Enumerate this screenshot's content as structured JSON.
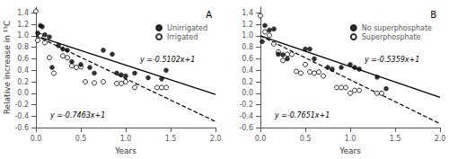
{
  "chart_data": [
    {
      "type": "scatter",
      "xlabel": "Years",
      "ylabel": "Relative increase in ¹³C",
      "annotations": [
        "A",
        "y =-0.5102x+1",
        "y =-0.7463x+1"
      ],
      "legend": "upper right",
      "grid": false,
      "xlim": [
        0.0,
        2.0
      ],
      "ylim": [
        -0.6,
        1.5
      ],
      "xticks": [
        {
          "value": 0,
          "label": "0.0"
        },
        0.5,
        {
          "value": 1,
          "label": "1.0"
        },
        1.5,
        {
          "value": 2,
          "label": "2.0"
        }
      ],
      "yticks": [
        -0.6,
        -0.4,
        -0.2,
        {
          "value": 0,
          "label": "0.0"
        },
        0.2,
        0.4,
        0.6,
        0.8,
        {
          "value": 1,
          "label": "1.0"
        },
        1.2,
        1.4
      ],
      "series": [
        {
          "type": "line",
          "color": "#000000",
          "line_style": "solid",
          "x": [
            0.0,
            2.0
          ],
          "values": [
            1,
            -0.0204
          ]
        },
        {
          "type": "line",
          "color": "#000000",
          "line_style": "dashed",
          "x": [
            0.0,
            2.0
          ],
          "values": [
            1,
            -0.4926
          ]
        },
        {
          "name": "Unirrigated",
          "type": "scatter",
          "color": "#000000",
          "marker": "circle",
          "x": [
            0.02,
            0.05,
            0.07,
            0.1,
            0.15,
            0.18,
            0.25,
            0.3,
            0.35,
            0.4,
            0.5,
            0.6,
            0.65,
            0.75,
            0.85,
            0.9,
            0.95,
            1.0,
            1.1,
            1.25,
            1.4,
            1.45
          ],
          "values": [
            1.05,
            1.18,
            1.16,
            1.02,
            0.98,
            0.45,
            0.83,
            0.77,
            0.75,
            0.55,
            0.5,
            0.45,
            0.35,
            0.75,
            0.68,
            0.35,
            0.32,
            0.3,
            0.35,
            0.27,
            0.25,
            0.4
          ]
        },
        {
          "name": "Irrigated",
          "type": "scatter",
          "color": "#000000",
          "marker": "hollow",
          "x": [
            0.0,
            0.02,
            0.05,
            0.1,
            0.15,
            0.2,
            0.3,
            0.35,
            0.4,
            0.45,
            0.5,
            0.55,
            0.65,
            0.75,
            0.9,
            0.95,
            1.0,
            1.1,
            1.35,
            1.4,
            1.45
          ],
          "values": [
            1.43,
            0.92,
            1.0,
            0.88,
            0.62,
            0.35,
            0.65,
            0.62,
            0.48,
            0.45,
            0.46,
            0.2,
            0.18,
            0.2,
            0.17,
            0.17,
            0.2,
            0.1,
            0.1,
            0.1,
            0.1
          ]
        }
      ]
    },
    {
      "type": "scatter",
      "xlabel": "Years",
      "annotations": [
        "B",
        "y =-0.5359x+1",
        "y =-0.7651x+1"
      ],
      "legend": "upper right",
      "grid": false,
      "xlim": [
        0.0,
        2.0
      ],
      "ylim": [
        -0.6,
        1.5
      ],
      "xticks": [
        {
          "value": 0,
          "label": "0.0"
        },
        0.5,
        {
          "value": 1,
          "label": "1.0"
        },
        1.5,
        {
          "value": 2,
          "label": "2.0"
        }
      ],
      "yticks": [
        -0.6,
        -0.4,
        -0.2,
        {
          "value": 0,
          "label": "0.0"
        },
        0.2,
        0.4,
        0.6,
        0.8,
        {
          "value": 1,
          "label": "1.0"
        },
        1.2,
        1.4
      ],
      "series": [
        {
          "type": "line",
          "color": "#000000",
          "line_style": "solid",
          "x": [
            0.0,
            2.0
          ],
          "values": [
            1,
            -0.0718
          ]
        },
        {
          "type": "line",
          "color": "#000000",
          "line_style": "dashed",
          "x": [
            0.0,
            2.0
          ],
          "values": [
            1,
            -0.5302
          ]
        },
        {
          "name": "No superphosphate",
          "type": "scatter",
          "color": "#000000",
          "marker": "circle",
          "x": [
            0.02,
            0.05,
            0.1,
            0.15,
            0.2,
            0.25,
            0.3,
            0.5,
            0.55,
            0.6,
            0.75,
            0.8,
            0.9,
            1.0,
            1.05,
            1.1,
            1.3,
            1.4
          ],
          "values": [
            0.9,
            1.18,
            1.1,
            1.12,
            0.68,
            0.67,
            0.6,
            0.77,
            0.77,
            0.6,
            0.45,
            0.42,
            0.45,
            0.5,
            0.45,
            0.42,
            0.28,
            0.08
          ]
        },
        {
          "name": "Superphosphate",
          "type": "scatter",
          "color": "#000000",
          "marker": "hollow",
          "x": [
            0.0,
            0.05,
            0.1,
            0.15,
            0.2,
            0.25,
            0.3,
            0.35,
            0.4,
            0.45,
            0.5,
            0.55,
            0.6,
            0.65,
            0.7,
            0.85,
            0.9,
            0.95,
            1.0,
            1.05,
            1.1,
            1.3,
            1.35
          ],
          "values": [
            1.35,
            1.07,
            1.01,
            0.86,
            0.72,
            0.57,
            0.68,
            0.68,
            0.38,
            0.35,
            0.5,
            0.37,
            0.35,
            0.37,
            0.3,
            0.1,
            0.1,
            0.1,
            0.0,
            0.05,
            0.05,
            0.0,
            0.0
          ]
        }
      ]
    }
  ]
}
